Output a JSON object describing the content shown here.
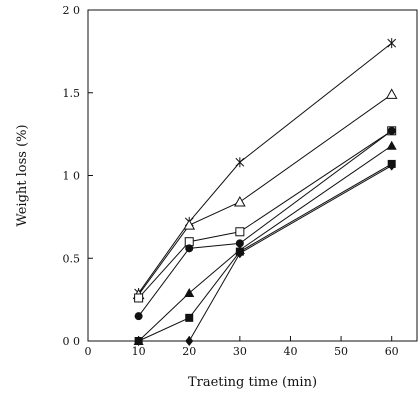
{
  "chart_data": {
    "type": "line",
    "title": "",
    "xlabel": "Traeting time (min)",
    "ylabel": "Weight loss (%)",
    "xlim": [
      0,
      65
    ],
    "ylim": [
      0,
      2.0
    ],
    "x_ticks": [
      0,
      10,
      20,
      30,
      40,
      50,
      60
    ],
    "y_ticks": [
      0,
      0.5,
      1.0,
      1.5,
      2.0
    ],
    "x_tick_labels": [
      "0",
      "10",
      "20",
      "30",
      "40",
      "50",
      "60"
    ],
    "y_tick_labels": [
      "0 0",
      "0.5",
      "1 0",
      "1.5",
      "2 0"
    ],
    "grid": false,
    "legend": "none",
    "x": [
      10,
      20,
      30,
      60
    ],
    "series": [
      {
        "marker": "star",
        "values": [
          0.29,
          0.72,
          1.08,
          1.8
        ]
      },
      {
        "marker": "open-triangle",
        "values": [
          0.28,
          0.7,
          0.84,
          1.49
        ]
      },
      {
        "marker": "open-square",
        "values": [
          0.26,
          0.6,
          0.66,
          1.27
        ]
      },
      {
        "marker": "filled-circle",
        "values": [
          0.15,
          0.56,
          0.59,
          1.27
        ]
      },
      {
        "marker": "filled-triangle",
        "values": [
          0.0,
          0.29,
          0.55,
          1.18
        ]
      },
      {
        "marker": "filled-square",
        "values": [
          0.0,
          0.14,
          0.54,
          1.07
        ]
      },
      {
        "marker": "filled-diamond",
        "values": [
          0.0,
          0.0,
          0.53,
          1.06
        ]
      }
    ]
  }
}
